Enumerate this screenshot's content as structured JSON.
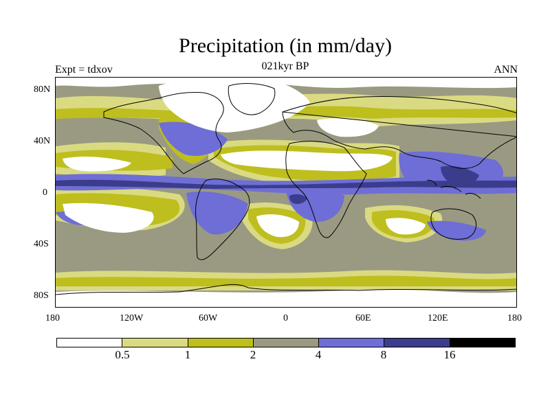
{
  "title": "Precipitation (in mm/day)",
  "subtitle_left": "Expt = tdxov",
  "subtitle_center": "021kyr BP",
  "subtitle_right": "ANN",
  "map": {
    "lat_ticks": [
      "80N",
      "40N",
      "0",
      "40S",
      "80S"
    ],
    "lon_ticks": [
      "180",
      "120W",
      "60W",
      "0",
      "60E",
      "120E",
      "180"
    ],
    "ocean_background": "#9a9a82",
    "coastline_color": "#000000"
  },
  "legend": {
    "colors": [
      "#ffffff",
      "#dada82",
      "#bebe1e",
      "#9a9a82",
      "#6e6ed6",
      "#3c3c8c",
      "#000000"
    ],
    "labels": [
      "0.5",
      "1",
      "2",
      "4",
      "8",
      "16"
    ]
  }
}
